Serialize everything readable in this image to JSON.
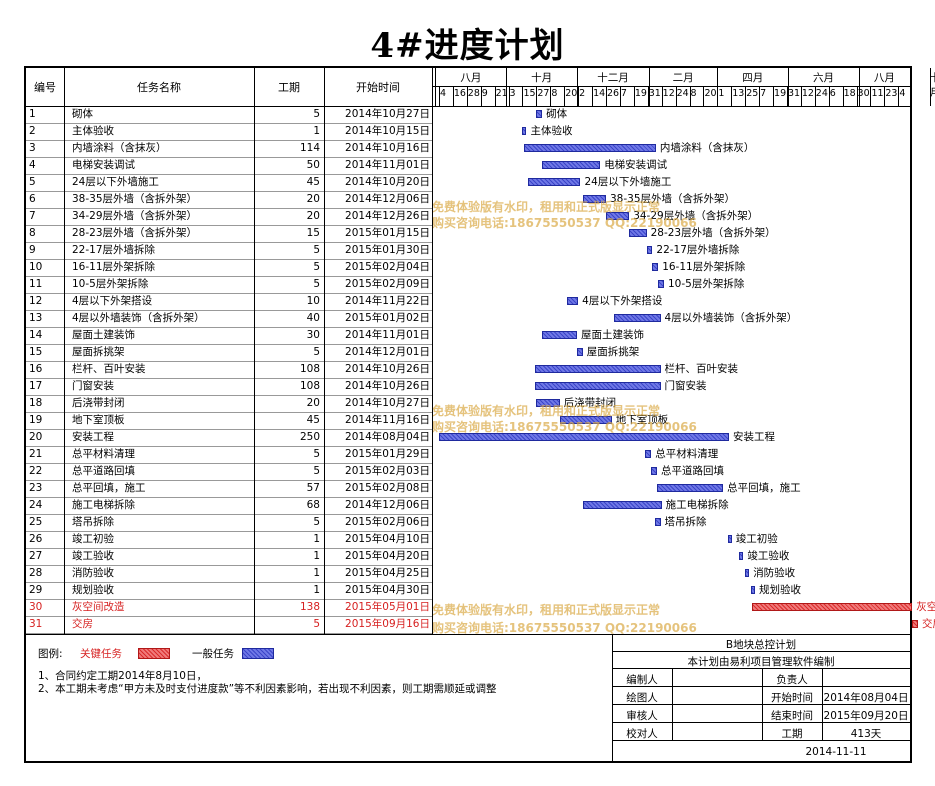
{
  "title": "4#进度计划",
  "columns": {
    "id": "编号",
    "name": "任务名称",
    "duration": "工期",
    "start": "开始时间"
  },
  "months": [
    "八月",
    "十月",
    "十二月",
    "二月",
    "四月",
    "六月",
    "八月",
    "十月"
  ],
  "days": [
    "4",
    "16",
    "28",
    "9",
    "21",
    "3",
    "15",
    "27",
    "8",
    "20",
    "2",
    "14",
    "26",
    "7",
    "19",
    "31",
    "12",
    "24",
    "8",
    "20",
    "1",
    "13",
    "25",
    "7",
    "19",
    "31",
    "12",
    "24",
    "6",
    "18",
    "30",
    "11",
    "23",
    "4",
    "16",
    "28",
    "10",
    "22",
    "3"
  ],
  "tasks": [
    {
      "id": "1",
      "name": "砌体",
      "duration": "5",
      "start": "2014年10月27日",
      "label": "砌体"
    },
    {
      "id": "2",
      "name": "主体验收",
      "duration": "1",
      "start": "2014年10月15日",
      "label": "主体验收"
    },
    {
      "id": "3",
      "name": "内墙涂料（含抹灰）",
      "duration": "114",
      "start": "2014年10月16日",
      "label": "内墙涂料（含抹灰）"
    },
    {
      "id": "4",
      "name": "电梯安装调试",
      "duration": "50",
      "start": "2014年11月01日",
      "label": "电梯安装调试"
    },
    {
      "id": "5",
      "name": "24层以下外墙施工",
      "duration": "45",
      "start": "2014年10月20日",
      "label": "24层以下外墙施工"
    },
    {
      "id": "6",
      "name": "38-35层外墙（含拆外架）",
      "duration": "20",
      "start": "2014年12月06日",
      "label": "38-35层外墙（含拆外架）"
    },
    {
      "id": "7",
      "name": "34-29层外墙（含拆外架）",
      "duration": "20",
      "start": "2014年12月26日",
      "label": "34-29层外墙（含拆外架）"
    },
    {
      "id": "8",
      "name": "28-23层外墙（含拆外架）",
      "duration": "15",
      "start": "2015年01月15日",
      "label": "28-23层外墙（含拆外架）"
    },
    {
      "id": "9",
      "name": "22-17层外墙拆除",
      "duration": "5",
      "start": "2015年01月30日",
      "label": "22-17层外墙拆除"
    },
    {
      "id": "10",
      "name": "16-11层外架拆除",
      "duration": "5",
      "start": "2015年02月04日",
      "label": "16-11层外架拆除"
    },
    {
      "id": "11",
      "name": "10-5层外架拆除",
      "duration": "5",
      "start": "2015年02月09日",
      "label": "10-5层外架拆除"
    },
    {
      "id": "12",
      "name": "4层以下外架搭设",
      "duration": "10",
      "start": "2014年11月22日",
      "label": "4层以下外架搭设"
    },
    {
      "id": "13",
      "name": "4层以外墙装饰（含拆外架）",
      "duration": "40",
      "start": "2015年01月02日",
      "label": "4层以外墙装饰（含拆外架）"
    },
    {
      "id": "14",
      "name": "屋面土建装饰",
      "duration": "30",
      "start": "2014年11月01日",
      "label": "屋面土建装饰"
    },
    {
      "id": "15",
      "name": "屋面拆挑架",
      "duration": "5",
      "start": "2014年12月01日",
      "label": "屋面拆挑架"
    },
    {
      "id": "16",
      "name": "栏杆、百叶安装",
      "duration": "108",
      "start": "2014年10月26日",
      "label": "栏杆、百叶安装"
    },
    {
      "id": "17",
      "name": "门窗安装",
      "duration": "108",
      "start": "2014年10月26日",
      "label": "门窗安装"
    },
    {
      "id": "18",
      "name": "后浇带封闭",
      "duration": "20",
      "start": "2014年10月27日",
      "label": "后浇带封闭"
    },
    {
      "id": "19",
      "name": "地下室顶板",
      "duration": "45",
      "start": "2014年11月16日",
      "label": "地下室顶板"
    },
    {
      "id": "20",
      "name": "安装工程",
      "duration": "250",
      "start": "2014年08月04日",
      "label": "安装工程"
    },
    {
      "id": "21",
      "name": "总平材料清理",
      "duration": "5",
      "start": "2015年01月29日",
      "label": "总平材料清理"
    },
    {
      "id": "22",
      "name": "总平道路回填",
      "duration": "5",
      "start": "2015年02月03日",
      "label": "总平道路回填"
    },
    {
      "id": "23",
      "name": "总平回填，施工",
      "duration": "57",
      "start": "2015年02月08日",
      "label": "总平回填，施工"
    },
    {
      "id": "24",
      "name": "施工电梯拆除",
      "duration": "68",
      "start": "2014年12月06日",
      "label": "施工电梯拆除"
    },
    {
      "id": "25",
      "name": "塔吊拆除",
      "duration": "5",
      "start": "2015年02月06日",
      "label": "塔吊拆除"
    },
    {
      "id": "26",
      "name": "竣工初验",
      "duration": "1",
      "start": "2015年04月10日",
      "label": "竣工初验"
    },
    {
      "id": "27",
      "name": "竣工验收",
      "duration": "1",
      "start": "2015年04月20日",
      "label": "竣工验收"
    },
    {
      "id": "28",
      "name": "消防验收",
      "duration": "1",
      "start": "2015年04月25日",
      "label": "消防验收"
    },
    {
      "id": "29",
      "name": "规划验收",
      "duration": "1",
      "start": "2015年04月30日",
      "label": "规划验收"
    },
    {
      "id": "30",
      "name": "灰空间改造",
      "duration": "138",
      "start": "2015年05月01日",
      "label": "灰空间改造",
      "critical": true
    },
    {
      "id": "31",
      "name": "交房",
      "duration": "5",
      "start": "2015年09月16日",
      "label": "交房",
      "critical": true
    }
  ],
  "watermark": {
    "line1": "免费体验版有水印，租用和正式版显示正常",
    "line2": "购买咨询电话:18675550537 QQ:22190066"
  },
  "legend": {
    "label": "图例:",
    "critical": "关键任务",
    "normal": "一般任务",
    "critical_color": "#d92c2c",
    "normal_color": "#3b45c8"
  },
  "notes": [
    "1、合同约定工期2014年8月10日，",
    "2、本工期未考虑“甲方未及时支付进度款”等不利因素影响，若出现不利因素，则工期需顺延或调整"
  ],
  "info": {
    "project": "B地块总控计划",
    "software": "本计划由易利项目管理软件编制",
    "compiler_label": "编制人",
    "responsible_label": "负责人",
    "drawer_label": "绘图人",
    "start_label": "开始时间",
    "start_value": "2014年08月04日",
    "reviewer_label": "审核人",
    "end_label": "结束时间",
    "end_value": "2015年09月20日",
    "checker_label": "校对人",
    "duration_label": "工期",
    "duration_value": "413天",
    "date": "2014-11-11"
  }
}
